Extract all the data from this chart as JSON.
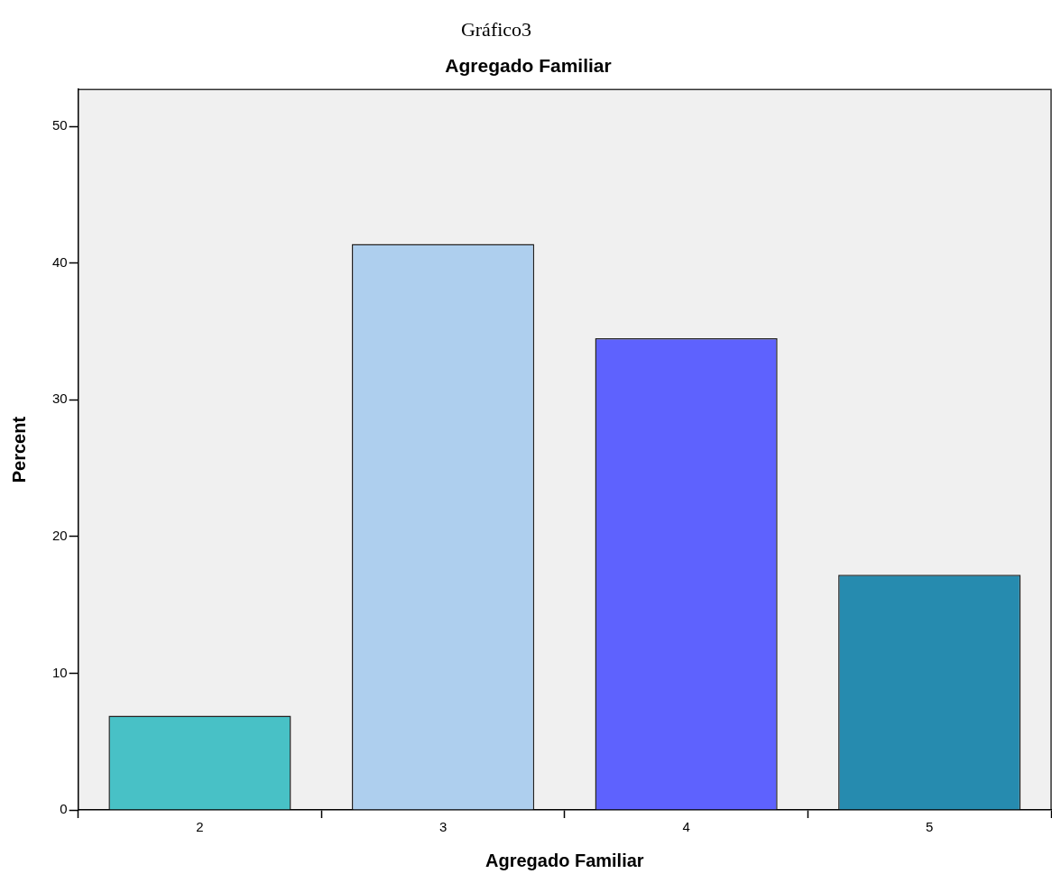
{
  "chart_data": {
    "type": "bar",
    "title": "Agregado Familiar",
    "xlabel": "Agregado Familiar",
    "ylabel": "Percent",
    "annotations": [
      "Gráfico3"
    ],
    "categories": [
      "2",
      "3",
      "4",
      "5"
    ],
    "values": [
      6.9,
      41.4,
      34.5,
      17.2
    ],
    "colors": [
      "#48c1c6",
      "#aecfee",
      "#5e62fe",
      "#268baf"
    ],
    "ylim": [
      0,
      52.7
    ],
    "yticks": [
      0,
      10,
      20,
      30,
      40,
      50
    ],
    "grid": false,
    "legend": false
  }
}
